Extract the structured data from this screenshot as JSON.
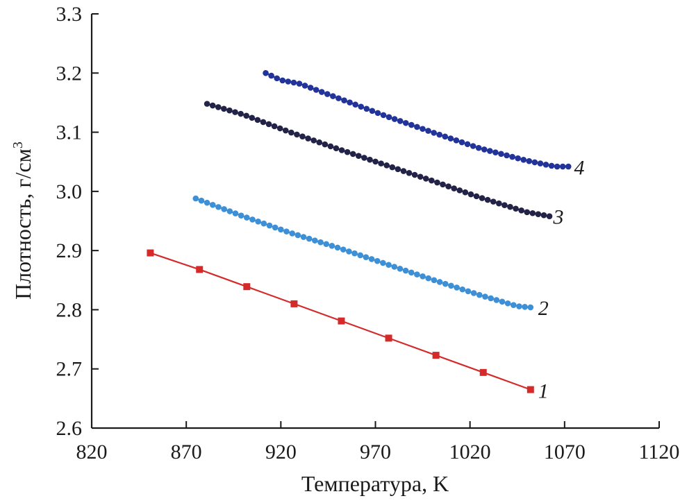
{
  "chart_data": {
    "type": "line",
    "xlabel": "Температура, K",
    "ylabel_main": "Плотность, г/см",
    "ylabel_sup": "3",
    "xlim": [
      820,
      1120
    ],
    "ylim": [
      2.6,
      3.3
    ],
    "xticks": [
      820,
      870,
      920,
      970,
      1020,
      1070,
      1120
    ],
    "yticks": [
      2.6,
      2.7,
      2.8,
      2.9,
      3.0,
      3.1,
      3.2,
      3.3
    ],
    "xtick_labels": [
      "820",
      "870",
      "920",
      "970",
      "1020",
      "1070",
      "1120"
    ],
    "ytick_labels": [
      "2.6",
      "2.7",
      "2.8",
      "2.9",
      "3.0",
      "3.1",
      "3.2",
      "3.3"
    ],
    "series": [
      {
        "name": "1",
        "label": "1",
        "color": "#d42a2a",
        "marker": "square",
        "label_x": 1056,
        "label_y": 2.663,
        "x": [
          851,
          877,
          902,
          927,
          952,
          977,
          1002,
          1027,
          1052
        ],
        "y": [
          2.896,
          2.868,
          2.839,
          2.81,
          2.781,
          2.752,
          2.723,
          2.694,
          2.665
        ]
      },
      {
        "name": "2",
        "label": "2",
        "color": "#3d8fd6",
        "marker": "circle",
        "label_x": 1056,
        "label_y": 2.803,
        "x_start": 875,
        "x_end": 1052,
        "n_points": 60,
        "y_curve": [
          [
            875,
            2.988
          ],
          [
            900,
            2.958
          ],
          [
            925,
            2.93
          ],
          [
            950,
            2.905
          ],
          [
            975,
            2.878
          ],
          [
            1000,
            2.851
          ],
          [
            1025,
            2.825
          ],
          [
            1045,
            2.806
          ],
          [
            1052,
            2.804
          ]
        ]
      },
      {
        "name": "3",
        "label": "3",
        "color": "#232348",
        "marker": "circle",
        "label_x": 1064,
        "label_y": 2.957,
        "x_start": 881,
        "x_end": 1062,
        "n_points": 62,
        "y_curve": [
          [
            881,
            3.148
          ],
          [
            900,
            3.13
          ],
          [
            925,
            3.1
          ],
          [
            950,
            3.072
          ],
          [
            975,
            3.045
          ],
          [
            1000,
            3.018
          ],
          [
            1025,
            2.99
          ],
          [
            1050,
            2.965
          ],
          [
            1062,
            2.958
          ]
        ]
      },
      {
        "name": "4",
        "label": "4",
        "color": "#223399",
        "marker": "circle",
        "label_x": 1075,
        "label_y": 3.04,
        "x_start": 912,
        "x_end": 1072,
        "n_points": 55,
        "y_curve": [
          [
            912,
            3.2
          ],
          [
            920,
            3.188
          ],
          [
            930,
            3.182
          ],
          [
            950,
            3.158
          ],
          [
            975,
            3.128
          ],
          [
            1000,
            3.1
          ],
          [
            1025,
            3.073
          ],
          [
            1050,
            3.052
          ],
          [
            1065,
            3.042
          ],
          [
            1072,
            3.042
          ]
        ]
      }
    ]
  }
}
